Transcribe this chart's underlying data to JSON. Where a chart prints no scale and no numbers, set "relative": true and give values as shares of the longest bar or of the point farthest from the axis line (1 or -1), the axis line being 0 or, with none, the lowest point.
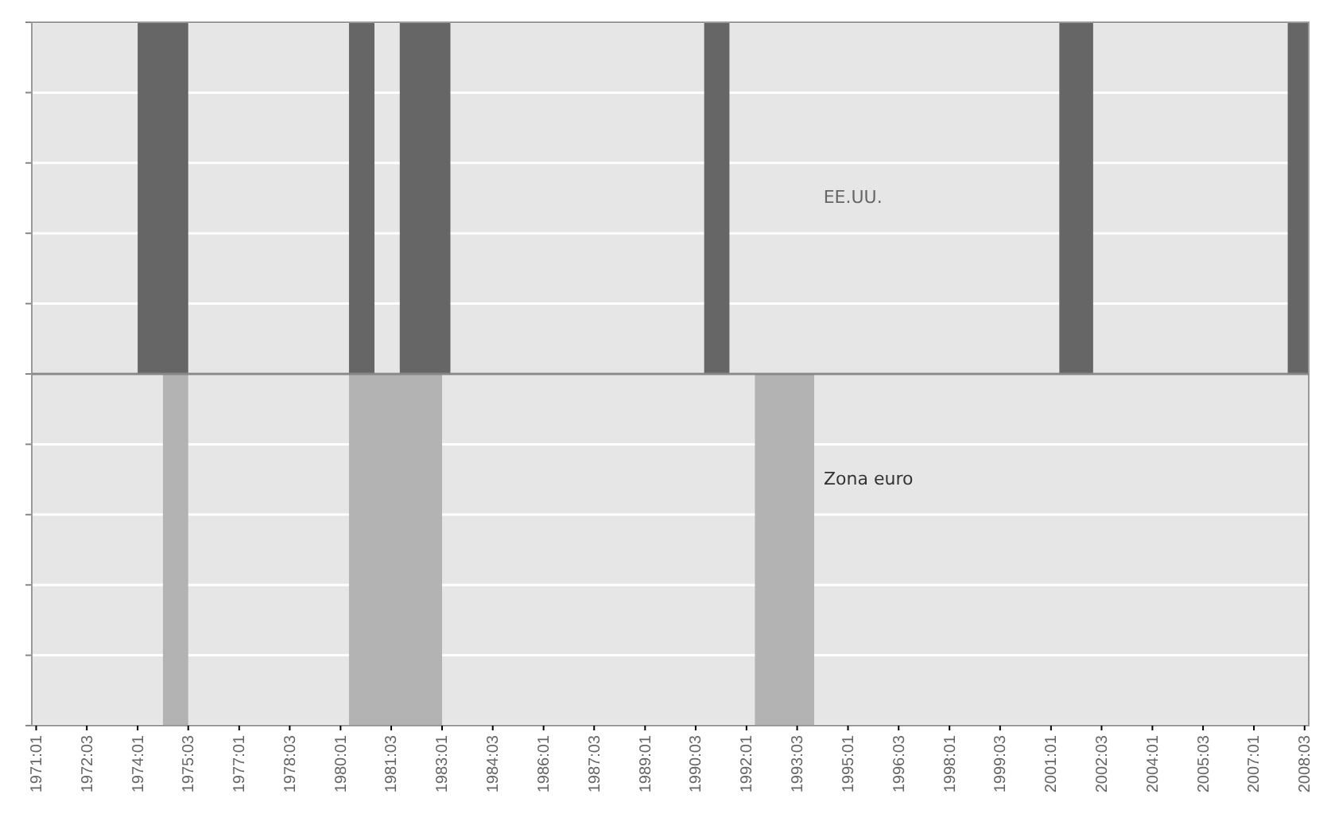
{
  "chart_data": {
    "type": "area",
    "relative": true,
    "grid": "y",
    "xlim": [
      "1970-11-15",
      "2008-08-15"
    ],
    "xticks": [
      {
        "value": "1971-01",
        "label": "1971:01"
      },
      {
        "value": "1972-07",
        "label": "1972:03"
      },
      {
        "value": "1974-01",
        "label": "1974:01"
      },
      {
        "value": "1975-07",
        "label": "1975:03"
      },
      {
        "value": "1977-01",
        "label": "1977:01"
      },
      {
        "value": "1978-07",
        "label": "1978:03"
      },
      {
        "value": "1980-01",
        "label": "1980:01"
      },
      {
        "value": "1981-07",
        "label": "1981:03"
      },
      {
        "value": "1983-01",
        "label": "1983:01"
      },
      {
        "value": "1984-07",
        "label": "1984:03"
      },
      {
        "value": "1986-01",
        "label": "1986:01"
      },
      {
        "value": "1987-07",
        "label": "1987:03"
      },
      {
        "value": "1989-01",
        "label": "1989:01"
      },
      {
        "value": "1990-07",
        "label": "1990:03"
      },
      {
        "value": "1992-01",
        "label": "1992:01"
      },
      {
        "value": "1993-07",
        "label": "1993:03"
      },
      {
        "value": "1995-01",
        "label": "1995:01"
      },
      {
        "value": "1996-07",
        "label": "1996:03"
      },
      {
        "value": "1998-01",
        "label": "1998:01"
      },
      {
        "value": "1999-07",
        "label": "1999:03"
      },
      {
        "value": "2001-01",
        "label": "2001:01"
      },
      {
        "value": "2002-07",
        "label": "2002:03"
      },
      {
        "value": "2004-01",
        "label": "2004:01"
      },
      {
        "value": "2005-07",
        "label": "2005:03"
      },
      {
        "value": "2007-01",
        "label": "2007:01"
      },
      {
        "value": "2008-07",
        "label": "2008:03"
      }
    ],
    "series": [
      {
        "name": "EE.UU.",
        "color": "#666666",
        "x": [
          "1970-11-15",
          "1974-01",
          "1974-01",
          "1975-07",
          "1975-07",
          "1980-04",
          "1980-04",
          "1981-01",
          "1981-01",
          "1981-10",
          "1981-10",
          "1983-04",
          "1983-04",
          "1990-10",
          "1990-10",
          "1991-07",
          "1991-07",
          "2001-04",
          "2001-04",
          "2002-04",
          "2002-04",
          "2008-01",
          "2008-01",
          "2008-08-15"
        ],
        "values": [
          0,
          0,
          1,
          1,
          0,
          0,
          1,
          1,
          0,
          0,
          1,
          1,
          0,
          0,
          1,
          1,
          0,
          0,
          1,
          1,
          0,
          0,
          1,
          1
        ]
      },
      {
        "name": "Zona euro",
        "color": "#b3b3b3",
        "x": [
          "1970-11-15",
          "1974-10",
          "1974-10",
          "1975-07",
          "1975-07",
          "1980-04",
          "1980-04",
          "1983-01",
          "1983-01",
          "1992-04",
          "1992-04",
          "1994-01",
          "1994-01",
          "2008-08-15"
        ],
        "values": [
          0,
          0,
          -1,
          -1,
          0,
          0,
          -1,
          -1,
          0,
          0,
          -1,
          -1,
          0,
          0
        ]
      }
    ]
  }
}
